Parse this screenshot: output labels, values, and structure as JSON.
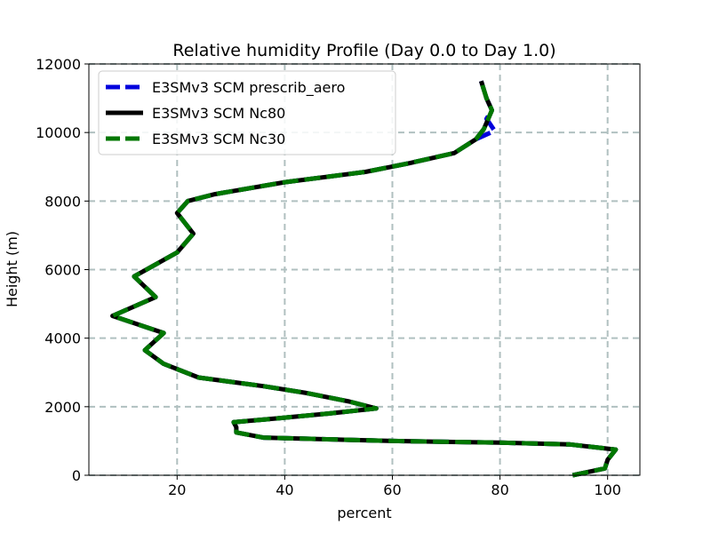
{
  "chart_data": {
    "type": "line",
    "title": "Relative humidity Profile (Day 0.0 to Day 1.0)",
    "xlabel": "percent",
    "ylabel": "Height (m)",
    "xlim": [
      3.6,
      106.0
    ],
    "ylim": [
      0,
      12000
    ],
    "xticks": [
      "20",
      "40",
      "60",
      "80",
      "100"
    ],
    "yticks": [
      "0",
      "2000",
      "4000",
      "6000",
      "8000",
      "10000",
      "12000"
    ],
    "grid": true,
    "legend_position": "top-left",
    "series": [
      {
        "name": "E3SMv3 SCM Nc80",
        "color": "#000000",
        "style": "solid",
        "x": [
          93.5,
          99.5,
          100,
          101.5,
          93,
          80,
          60,
          36,
          31,
          31,
          30.5,
          38,
          48,
          57,
          52,
          44,
          36,
          24,
          17.5,
          14,
          17.5,
          8,
          16,
          12,
          20,
          23,
          20,
          22,
          27,
          40,
          55,
          63,
          71.5,
          75.5,
          76.5,
          77,
          78.5,
          77.5,
          76.5
        ],
        "y": [
          0,
          200,
          450,
          750,
          900,
          950,
          1000,
          1100,
          1250,
          1400,
          1550,
          1650,
          1800,
          1950,
          2150,
          2400,
          2600,
          2850,
          3250,
          3650,
          4150,
          4650,
          5200,
          5800,
          6500,
          7050,
          7650,
          8000,
          8200,
          8550,
          8850,
          9100,
          9400,
          9800,
          10000,
          10100,
          10650,
          11000,
          11500
        ]
      },
      {
        "name": "E3SMv3 SCM prescrib_aero",
        "color": "#0000dd",
        "style": "dashed",
        "x": [
          93.5,
          99.5,
          100,
          101.5,
          93,
          80,
          60,
          36,
          31,
          31,
          30.5,
          38,
          48,
          57,
          52,
          44,
          36,
          24,
          17.5,
          14,
          17.5,
          8,
          16,
          12,
          20,
          23,
          20,
          22,
          27,
          40,
          55,
          63,
          71.5,
          75.5,
          79,
          77.5,
          78.5,
          77.5,
          76.5
        ],
        "y": [
          0,
          200,
          450,
          750,
          900,
          950,
          1000,
          1100,
          1250,
          1400,
          1550,
          1650,
          1800,
          1950,
          2150,
          2400,
          2600,
          2850,
          3250,
          3650,
          4150,
          4650,
          5200,
          5800,
          6500,
          7050,
          7650,
          8000,
          8200,
          8550,
          8850,
          9100,
          9400,
          9800,
          10050,
          10400,
          10650,
          11000,
          11500
        ]
      },
      {
        "name": "E3SMv3 SCM Nc30",
        "color": "#007700",
        "style": "dashed",
        "x": [
          93.5,
          99.5,
          100,
          101.5,
          93,
          80,
          60,
          36,
          31,
          31,
          30.5,
          38,
          48,
          57,
          52,
          44,
          36,
          24,
          17.5,
          14,
          17.5,
          8,
          16,
          12,
          20,
          23,
          20,
          22,
          27,
          40,
          55,
          63,
          71.5,
          75.5,
          76.5,
          77,
          78.5,
          77.5,
          76.5
        ],
        "y": [
          0,
          200,
          450,
          750,
          900,
          950,
          1000,
          1100,
          1250,
          1400,
          1550,
          1650,
          1800,
          1950,
          2150,
          2400,
          2600,
          2850,
          3250,
          3650,
          4150,
          4650,
          5200,
          5800,
          6500,
          7050,
          7650,
          8000,
          8200,
          8550,
          8850,
          9100,
          9400,
          9800,
          10000,
          10100,
          10650,
          11000,
          11500
        ]
      }
    ],
    "legend": [
      {
        "name": "E3SMv3 SCM prescrib_aero",
        "color": "#0000dd",
        "style": "dashed"
      },
      {
        "name": "E3SMv3 SCM Nc80",
        "color": "#000000",
        "style": "solid"
      },
      {
        "name": "E3SMv3 SCM Nc30",
        "color": "#007700",
        "style": "dashed"
      }
    ]
  }
}
